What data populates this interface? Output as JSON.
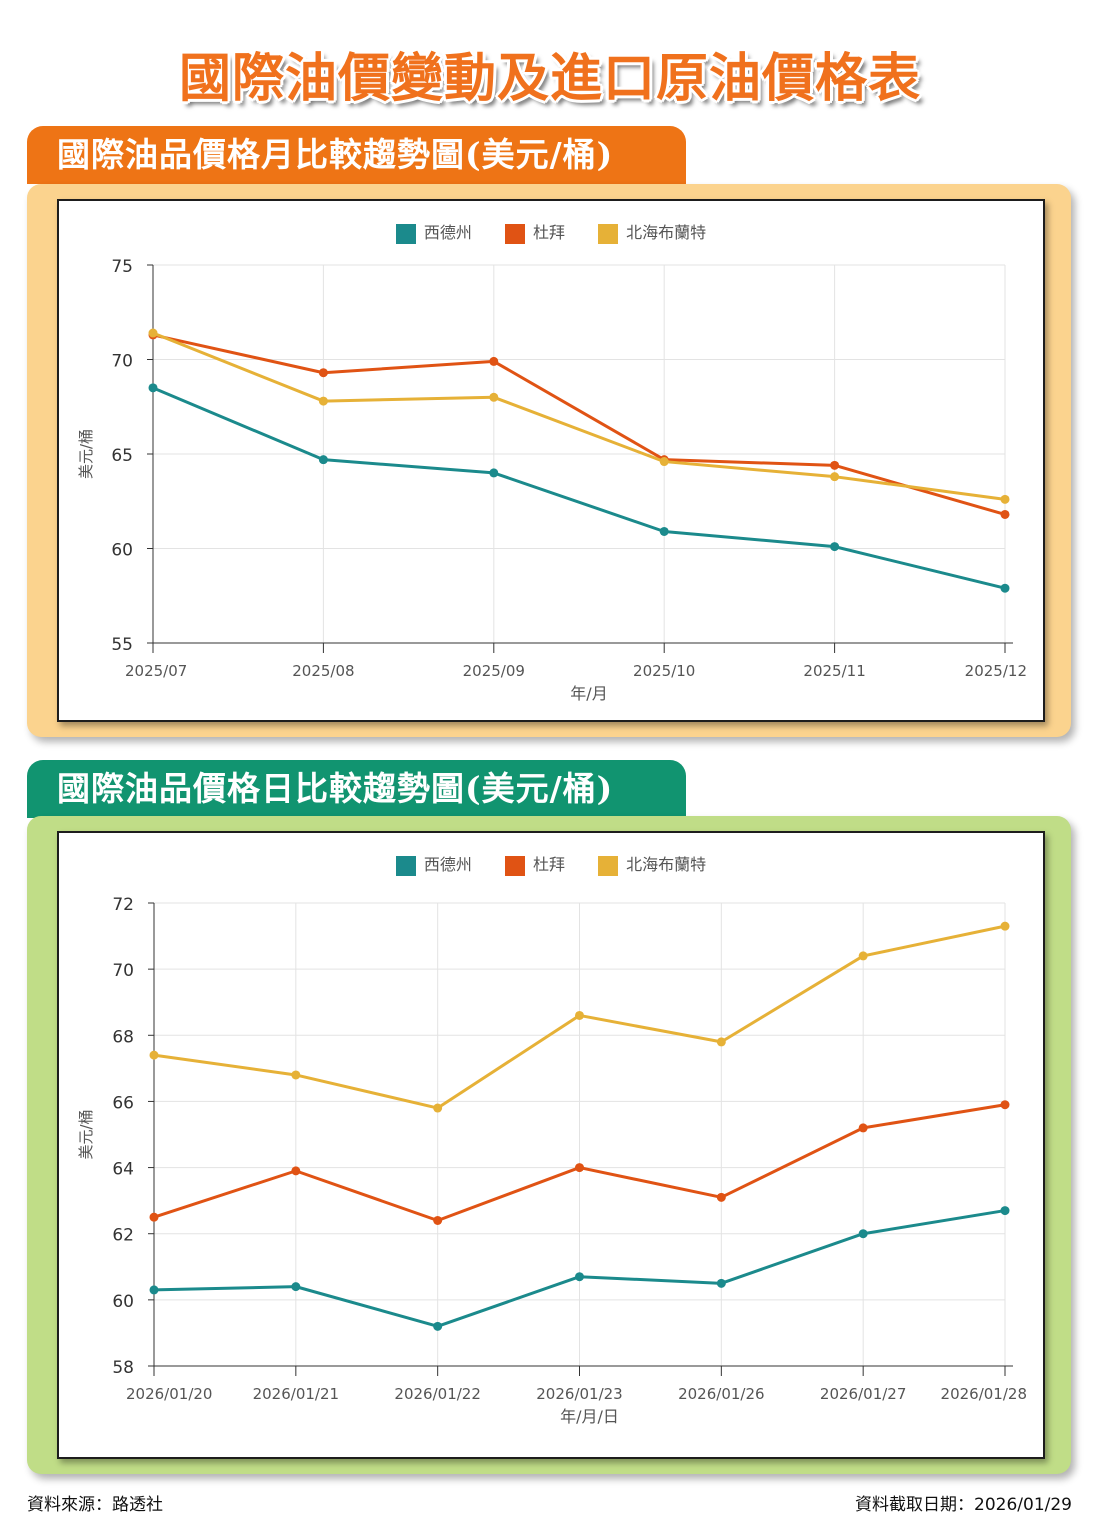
{
  "page_title": "國際油價變動及進口原油價格表",
  "footer": {
    "source": "資料來源：路透社",
    "date": "資料截取日期：2026/01/29"
  },
  "colors": {
    "wti": "#1b8a8c",
    "dubai": "#e05314",
    "brent": "#e6b137"
  },
  "chart_data": [
    {
      "type": "line",
      "section_title": "國際油品價格月比較趨勢圖(美元/桶)",
      "legend": [
        "西德州",
        "杜拜",
        "北海布蘭特"
      ],
      "categories": [
        "2025/07",
        "2025/08",
        "2025/09",
        "2025/10",
        "2025/11",
        "2025/12"
      ],
      "series": [
        {
          "name": "西德州",
          "values": [
            68.5,
            64.7,
            64.0,
            60.9,
            60.1,
            57.9
          ]
        },
        {
          "name": "杜拜",
          "values": [
            71.3,
            69.3,
            69.9,
            64.7,
            64.4,
            61.8
          ]
        },
        {
          "name": "北海布蘭特",
          "values": [
            71.4,
            67.8,
            68.0,
            64.6,
            63.8,
            62.6
          ]
        }
      ],
      "xlabel": "年/月",
      "ylabel": "美元/桶",
      "ylim": [
        55,
        75
      ],
      "yticks": [
        55,
        60,
        65,
        70,
        75
      ]
    },
    {
      "type": "line",
      "section_title": "國際油品價格日比較趨勢圖(美元/桶)",
      "legend": [
        "西德州",
        "杜拜",
        "北海布蘭特"
      ],
      "categories": [
        "2026/01/20",
        "2026/01/21",
        "2026/01/22",
        "2026/01/23",
        "2026/01/26",
        "2026/01/27",
        "2026/01/28"
      ],
      "series": [
        {
          "name": "西德州",
          "values": [
            60.3,
            60.4,
            59.2,
            60.7,
            60.5,
            62.0,
            62.7
          ]
        },
        {
          "name": "杜拜",
          "values": [
            62.5,
            63.9,
            62.4,
            64.0,
            63.1,
            65.2,
            65.9
          ]
        },
        {
          "name": "北海布蘭特",
          "values": [
            67.4,
            66.8,
            65.8,
            68.6,
            67.8,
            70.4,
            71.3
          ]
        }
      ],
      "xlabel": "年/月/日",
      "ylabel": "美元/桶",
      "ylim": [
        58,
        72
      ],
      "yticks": [
        58,
        60,
        62,
        64,
        66,
        68,
        70,
        72
      ]
    }
  ]
}
